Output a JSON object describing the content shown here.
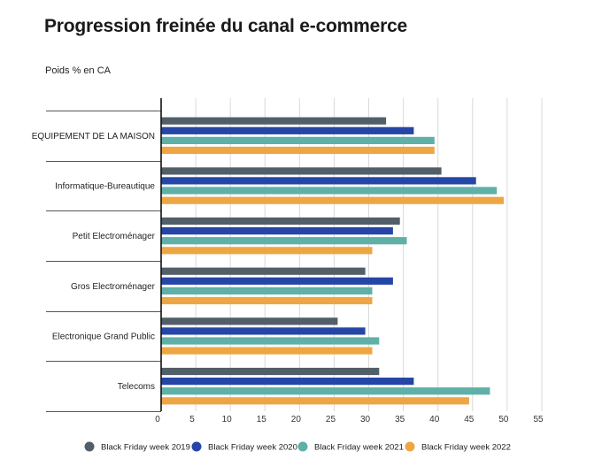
{
  "title": "Progression freinée du canal e-commerce",
  "subtitle": "Poids % en CA",
  "chart_data": {
    "type": "bar",
    "orientation": "horizontal",
    "title": "Progression freinée du canal e-commerce",
    "subtitle": "Poids % en CA",
    "xlim": [
      0,
      55
    ],
    "x_ticks": [
      0,
      5,
      10,
      15,
      20,
      25,
      30,
      35,
      40,
      45,
      50,
      55
    ],
    "grid": true,
    "legend_position": "bottom",
    "categories": [
      "EQUIPEMENT DE LA MAISON",
      "Informatique-Bureautique",
      "Petit Electroménager",
      "Gros Electroménager",
      "Electronique Grand Public",
      "Telecoms"
    ],
    "series": [
      {
        "name": "Black Friday week 2019",
        "color": "#525e68",
        "values": [
          32.5,
          40.5,
          34.5,
          29.5,
          25.5,
          31.5
        ]
      },
      {
        "name": "Black Friday week 2020",
        "color": "#2546a6",
        "values": [
          36.5,
          45.5,
          33.5,
          33.5,
          29.5,
          36.5
        ]
      },
      {
        "name": "Black Friday week 2021",
        "color": "#5fb0a7",
        "values": [
          39.5,
          48.5,
          35.5,
          30.5,
          31.5,
          47.5
        ]
      },
      {
        "name": "Black Friday week 2022",
        "color": "#eea645",
        "values": [
          39.5,
          49.5,
          30.5,
          30.5,
          30.5,
          44.5
        ]
      }
    ]
  }
}
